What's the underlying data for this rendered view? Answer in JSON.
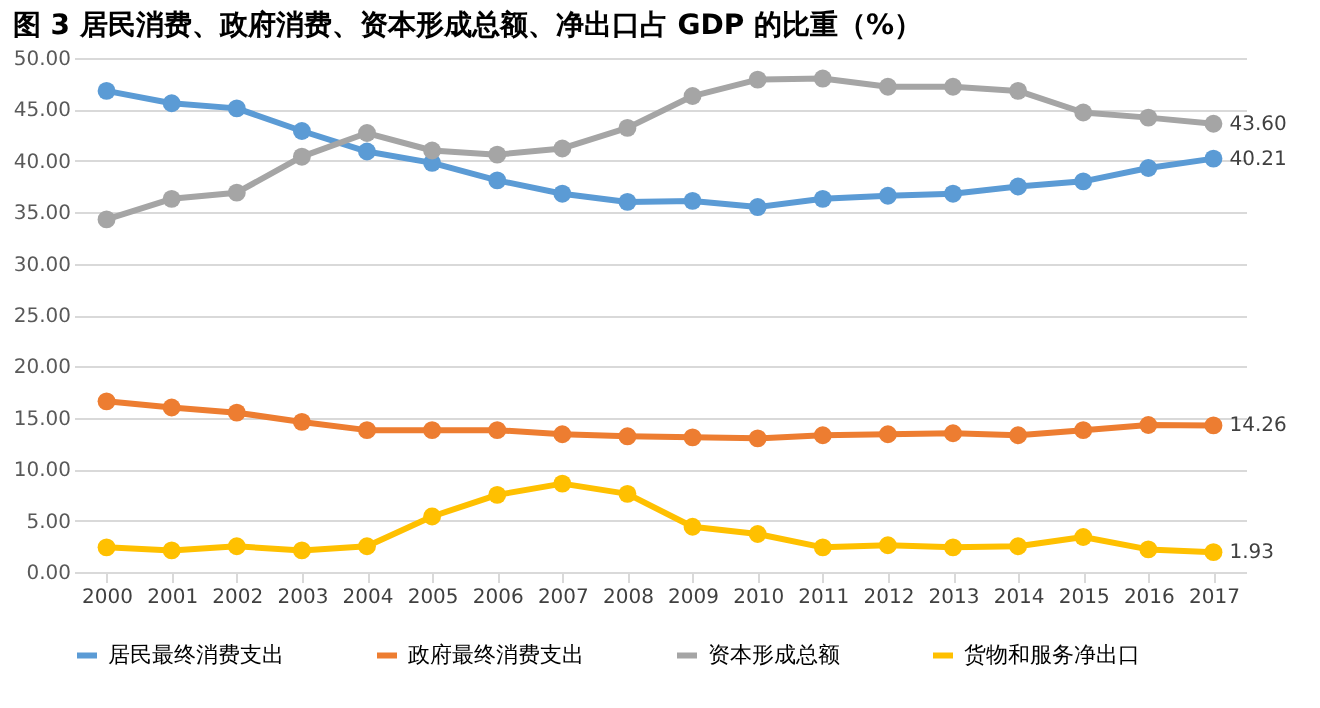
{
  "chart_data": {
    "type": "line",
    "title": "图 3  居民消费、政府消费、资本形成总额、净出口占 GDP 的比重（%）",
    "categories": [
      "2000",
      "2001",
      "2002",
      "2003",
      "2004",
      "2005",
      "2006",
      "2007",
      "2008",
      "2009",
      "2010",
      "2011",
      "2012",
      "2013",
      "2014",
      "2015",
      "2016",
      "2017"
    ],
    "series": [
      {
        "name": "居民最终消费支出",
        "color": "#5b9bd5",
        "values": [
          46.8,
          45.6,
          45.1,
          42.9,
          40.9,
          39.8,
          38.1,
          36.8,
          36.0,
          36.1,
          35.5,
          36.3,
          36.6,
          36.8,
          37.5,
          38.0,
          39.3,
          40.21
        ],
        "value_labels": [
          null,
          null,
          null,
          null,
          null,
          null,
          null,
          null,
          null,
          null,
          null,
          null,
          null,
          null,
          null,
          null,
          null,
          "40.21"
        ]
      },
      {
        "name": "政府最终消费支出",
        "color": "#ed7d31",
        "values": [
          16.6,
          16.0,
          15.5,
          14.6,
          13.8,
          13.8,
          13.8,
          13.4,
          13.2,
          13.1,
          13.0,
          13.3,
          13.4,
          13.5,
          13.3,
          13.8,
          14.3,
          14.26
        ],
        "value_labels": [
          null,
          null,
          null,
          null,
          null,
          null,
          null,
          null,
          null,
          null,
          null,
          null,
          null,
          null,
          null,
          null,
          null,
          "14.26"
        ]
      },
      {
        "name": "资本形成总额",
        "color": "#a5a5a5",
        "values": [
          34.3,
          36.3,
          36.9,
          40.4,
          42.7,
          41.0,
          40.6,
          41.2,
          43.2,
          46.3,
          47.9,
          48.0,
          47.2,
          47.2,
          46.8,
          44.7,
          44.2,
          43.6
        ],
        "value_labels": [
          null,
          null,
          null,
          null,
          null,
          null,
          null,
          null,
          null,
          null,
          null,
          null,
          null,
          null,
          null,
          null,
          null,
          "43.60"
        ]
      },
      {
        "name": "货物和服务净出口",
        "color": "#ffc000",
        "values": [
          2.4,
          2.1,
          2.5,
          2.1,
          2.5,
          5.4,
          7.5,
          8.6,
          7.6,
          4.4,
          3.7,
          2.4,
          2.6,
          2.4,
          2.5,
          3.4,
          2.2,
          1.93
        ],
        "value_labels": [
          null,
          null,
          null,
          null,
          null,
          null,
          null,
          null,
          null,
          null,
          null,
          null,
          null,
          null,
          null,
          null,
          null,
          "1.93"
        ]
      }
    ],
    "ylim": [
      0,
      50
    ],
    "yticks": [
      {
        "value": 0,
        "label": "0.00"
      },
      {
        "value": 5,
        "label": "5.00"
      },
      {
        "value": 10,
        "label": "10.00"
      },
      {
        "value": 15,
        "label": "15.00"
      },
      {
        "value": 20,
        "label": "20.00"
      },
      {
        "value": 25,
        "label": "25.00"
      },
      {
        "value": 30,
        "label": "30.00"
      },
      {
        "value": 35,
        "label": "35.00"
      },
      {
        "value": 40,
        "label": "40.00"
      },
      {
        "value": 45,
        "label": "45.00"
      },
      {
        "value": 50,
        "label": "50.00"
      }
    ],
    "grid": "y",
    "legend": "bottom",
    "marker": "circle",
    "line_style": "solid"
  }
}
